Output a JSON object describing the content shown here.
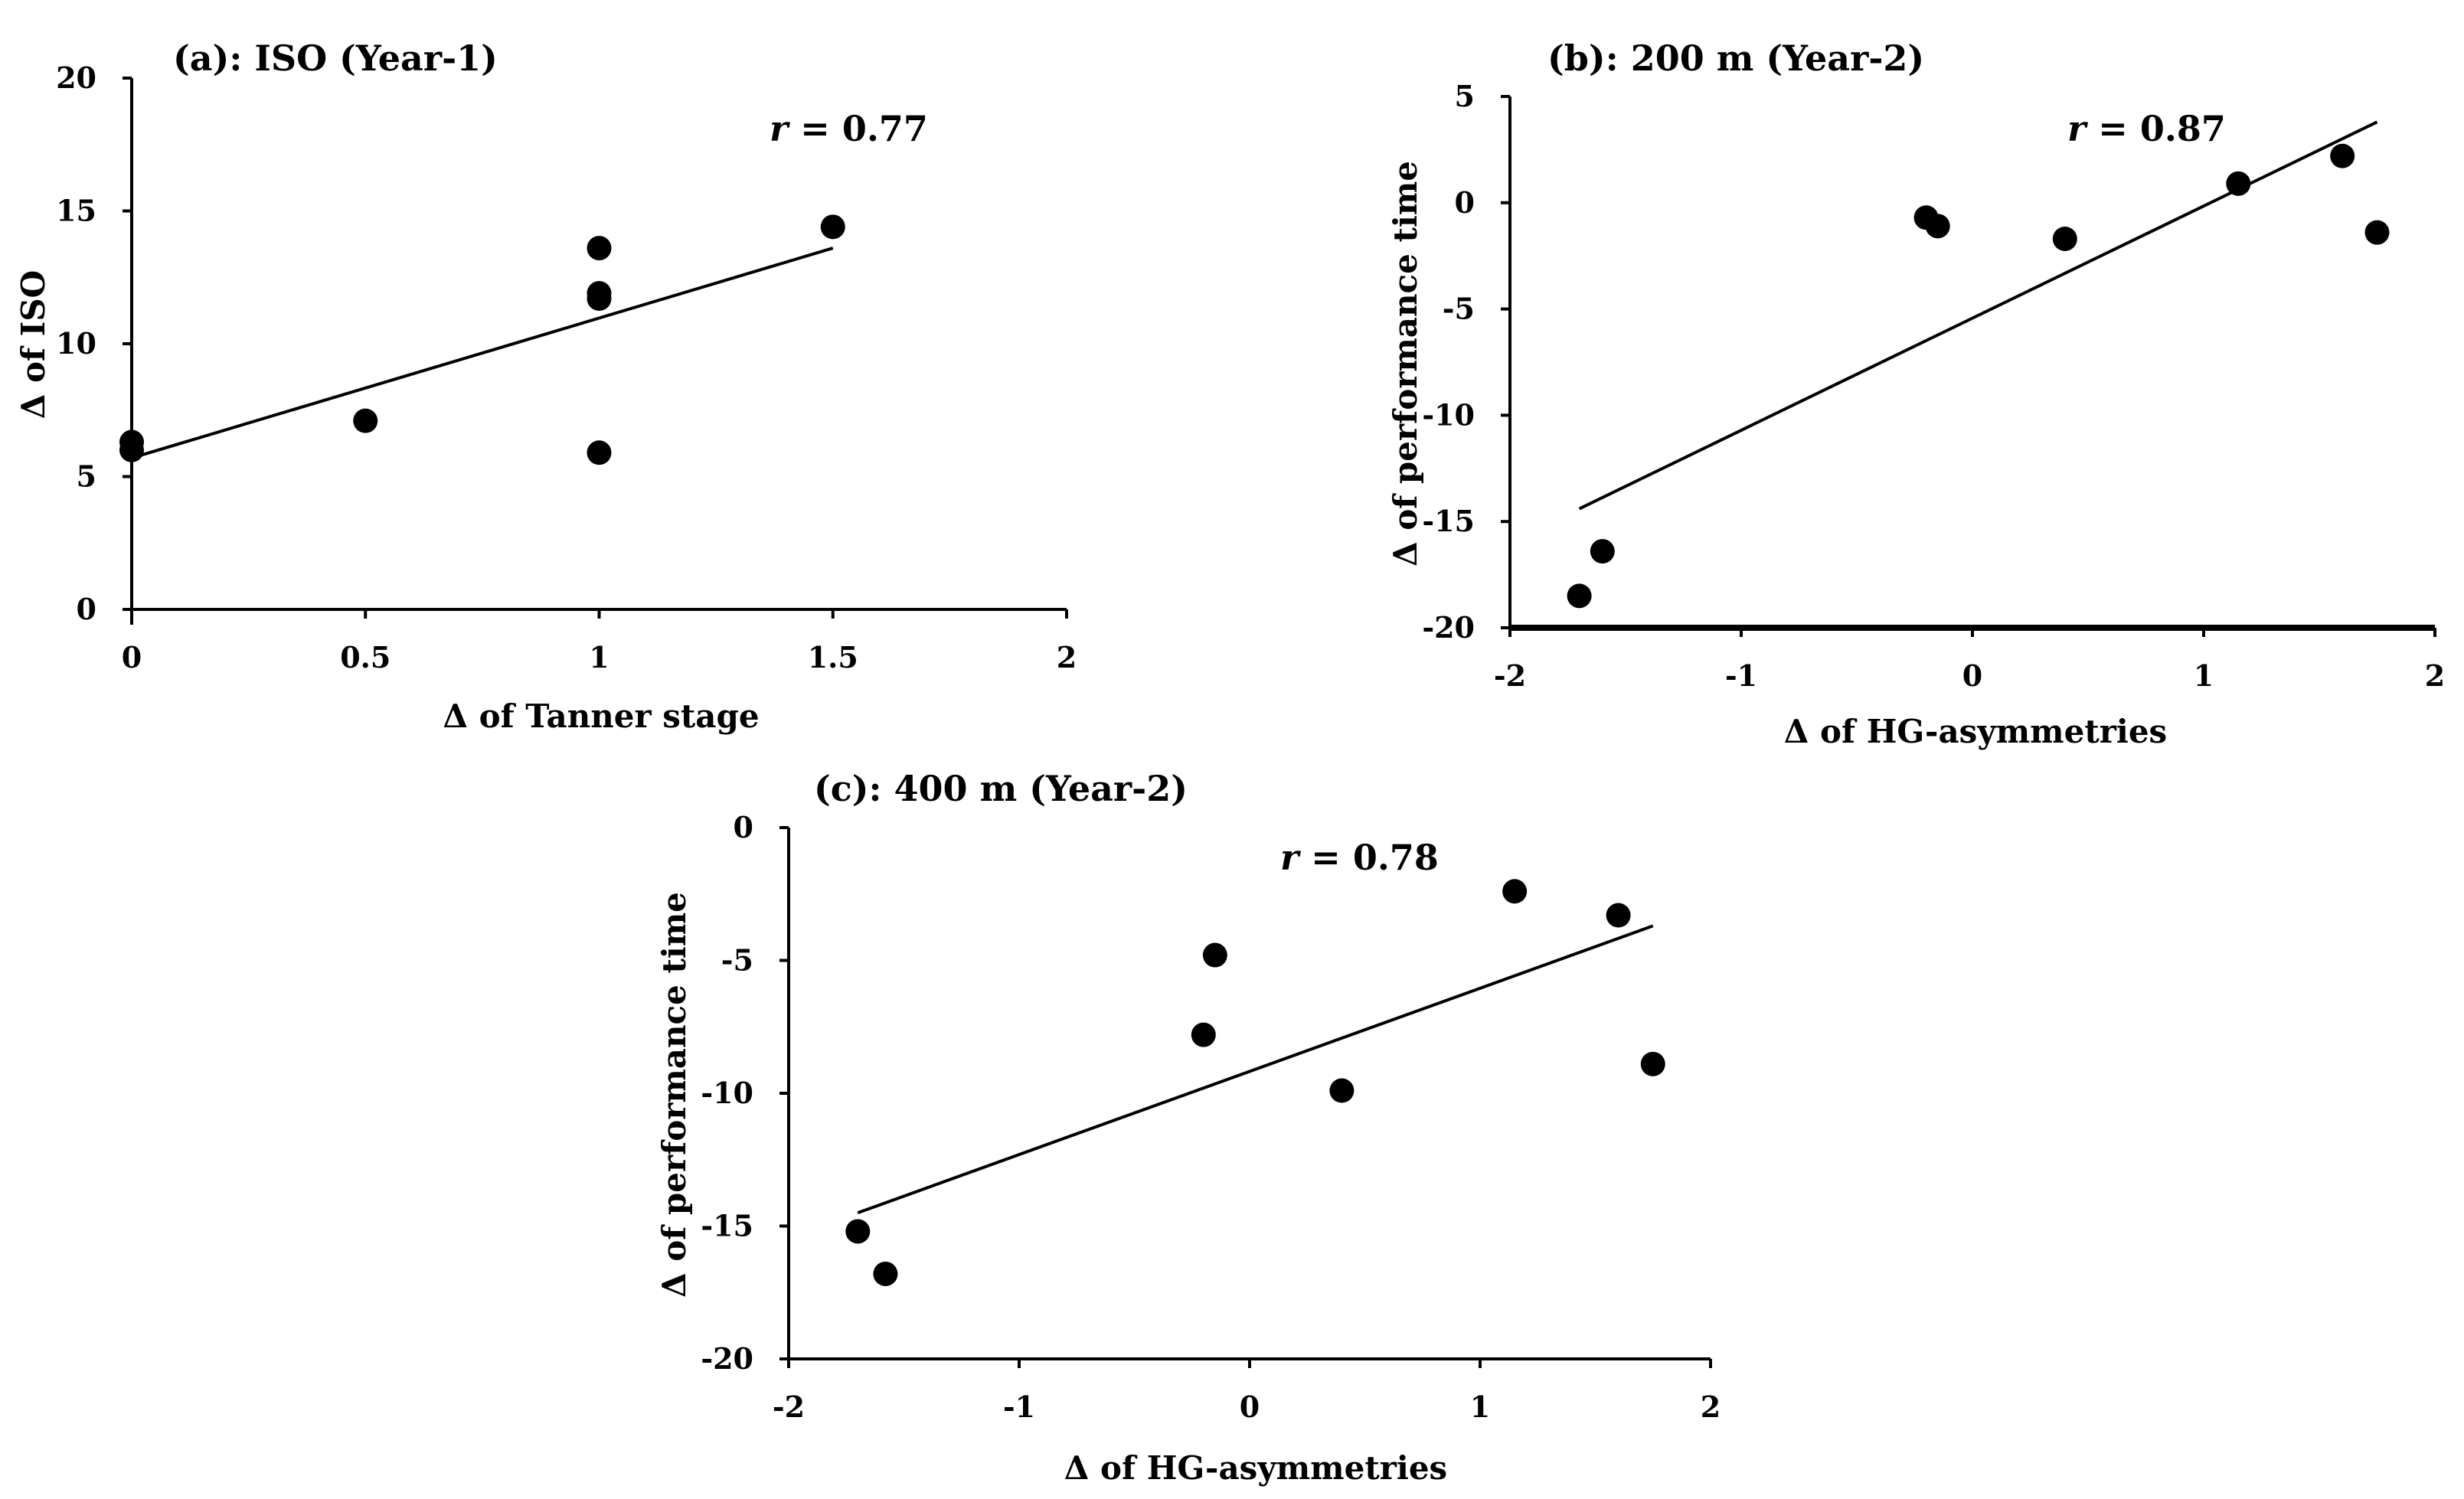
{
  "colors": {
    "ink": "#000000",
    "background": "#ffffff"
  },
  "chart_data": [
    {
      "type": "scatter",
      "panel": "a",
      "title": "(a): ISO (Year-1)",
      "xlabel": "Δ of Tanner stage",
      "ylabel": "Δ of ISO",
      "xlim": [
        0,
        2
      ],
      "ylim": [
        0,
        20
      ],
      "x_ticks": [
        0,
        0.5,
        1,
        1.5,
        2
      ],
      "y_ticks": [
        0,
        5,
        10,
        15,
        20
      ],
      "x_tick_labels": [
        "0",
        "0.5",
        "1",
        "1.5",
        "2"
      ],
      "y_tick_labels": [
        "0",
        "5",
        "10",
        "15",
        "20"
      ],
      "correlation": {
        "symbol": "r",
        "text": " = 0.77"
      },
      "points": [
        {
          "x": 0,
          "y": 6.3
        },
        {
          "x": 0,
          "y": 6.0
        },
        {
          "x": 0.5,
          "y": 7.1
        },
        {
          "x": 1,
          "y": 13.6
        },
        {
          "x": 1,
          "y": 11.9
        },
        {
          "x": 1,
          "y": 11.7
        },
        {
          "x": 1,
          "y": 5.9
        },
        {
          "x": 1.5,
          "y": 14.4
        }
      ],
      "trendline": {
        "x": [
          0,
          1.5
        ],
        "y": [
          5.7,
          13.6
        ]
      }
    },
    {
      "type": "scatter",
      "panel": "b",
      "title": "(b): 200 m (Year-2)",
      "xlabel": "Δ of HG-asymmetries",
      "ylabel": "Δ of performance time",
      "xlim": [
        -2,
        2
      ],
      "ylim": [
        -20,
        5
      ],
      "x_ticks": [
        -2,
        -1,
        0,
        1,
        2
      ],
      "y_ticks": [
        -20,
        -15,
        -10,
        -5,
        0,
        5
      ],
      "x_tick_labels": [
        "-2",
        "-1",
        "0",
        "1",
        "2"
      ],
      "y_tick_labels": [
        "-20",
        "-15",
        "-10",
        "-5",
        "0",
        "5"
      ],
      "correlation": {
        "symbol": "r",
        "text": " = 0.87"
      },
      "points": [
        {
          "x": -1.7,
          "y": -18.5
        },
        {
          "x": -1.6,
          "y": -16.4
        },
        {
          "x": -0.2,
          "y": -0.7
        },
        {
          "x": -0.15,
          "y": -1.1
        },
        {
          "x": 0.4,
          "y": -1.7
        },
        {
          "x": 1.15,
          "y": 0.9
        },
        {
          "x": 1.6,
          "y": 2.2
        },
        {
          "x": 1.75,
          "y": -1.4
        }
      ],
      "trendline": {
        "x": [
          -1.7,
          1.75
        ],
        "y": [
          -14.4,
          3.8
        ]
      }
    },
    {
      "type": "scatter",
      "panel": "c",
      "title": "(c): 400 m (Year-2)",
      "xlabel": "Δ of HG-asymmetries",
      "ylabel": "Δ of performance time",
      "xlim": [
        -2,
        2
      ],
      "ylim": [
        -20,
        0
      ],
      "x_ticks": [
        -2,
        -1,
        0,
        1,
        2
      ],
      "y_ticks": [
        -20,
        -15,
        -10,
        -5,
        0
      ],
      "x_tick_labels": [
        "-2",
        "-1",
        "0",
        "1",
        "2"
      ],
      "y_tick_labels": [
        "-20",
        "-15",
        "-10",
        "-5",
        "0"
      ],
      "correlation": {
        "symbol": "r",
        "text": " = 0.78"
      },
      "points": [
        {
          "x": -1.7,
          "y": -15.2
        },
        {
          "x": -1.58,
          "y": -16.8
        },
        {
          "x": -0.2,
          "y": -7.8
        },
        {
          "x": -0.15,
          "y": -4.8
        },
        {
          "x": 0.4,
          "y": -9.9
        },
        {
          "x": 1.15,
          "y": -2.4
        },
        {
          "x": 1.6,
          "y": -3.3
        },
        {
          "x": 1.75,
          "y": -8.9
        }
      ],
      "trendline": {
        "x": [
          -1.7,
          1.75
        ],
        "y": [
          -14.5,
          -3.7
        ]
      }
    }
  ]
}
